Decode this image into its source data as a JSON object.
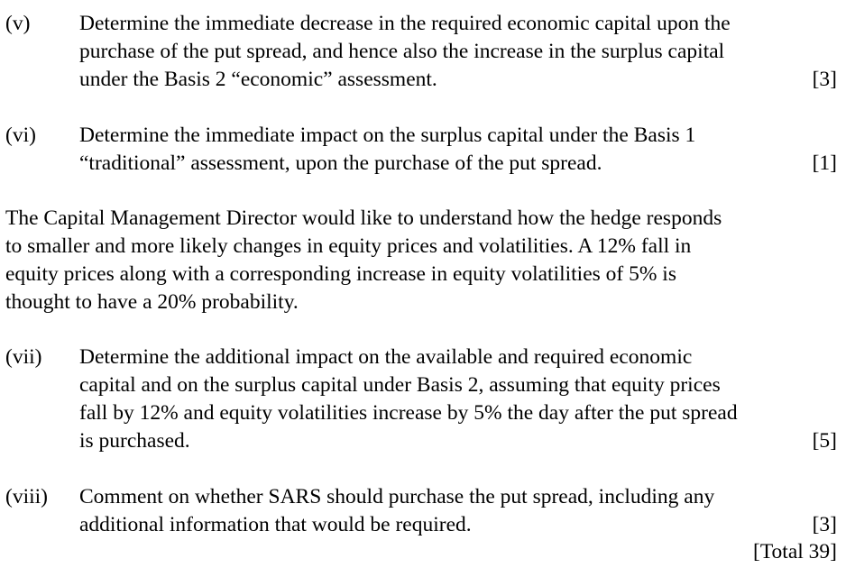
{
  "questions": [
    {
      "number": "(v)",
      "lines": [
        "Determine the immediate decrease in the required economic capital upon the",
        "purchase of the put spread, and hence also the increase in the surplus capital",
        "under the Basis 2 “economic” assessment."
      ],
      "marks": "[3]"
    },
    {
      "number": "(vi)",
      "lines": [
        "Determine the immediate impact on the surplus capital under the Basis 1",
        "“traditional” assessment, upon the purchase of the put spread."
      ],
      "marks": "[1]"
    },
    {
      "number": "(vii)",
      "lines": [
        "Determine the additional impact on the available and required economic",
        "capital and on the surplus capital under Basis 2, assuming that equity prices",
        "fall by 12% and equity volatilities increase by 5% the day after the put spread",
        "is purchased."
      ],
      "marks": "[5]"
    },
    {
      "number": "(viii)",
      "lines": [
        "Comment on whether SARS should purchase the put spread, including any",
        "additional information that would be required."
      ],
      "marks": "[3]"
    }
  ],
  "paragraph": {
    "lines": [
      "The Capital Management Director would like to understand how the hedge responds",
      "to smaller and more likely changes in equity prices and volatilities.  A 12% fall in",
      "equity prices along with a corresponding increase in equity volatilities of 5% is",
      "thought to have a 20% probability."
    ]
  },
  "total": "[Total 39]"
}
